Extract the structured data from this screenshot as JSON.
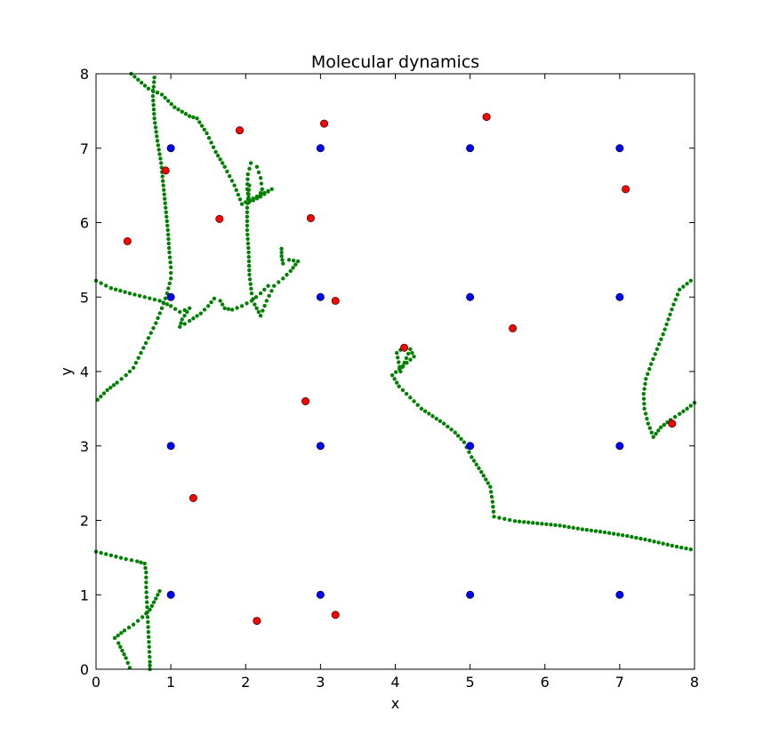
{
  "chart_data": {
    "type": "scatter",
    "title": "Molecular dynamics",
    "xlabel": "x",
    "ylabel": "y",
    "xlim": [
      0,
      8
    ],
    "ylim": [
      0,
      8
    ],
    "xticks": [
      "0",
      "1",
      "2",
      "3",
      "4",
      "5",
      "6",
      "7",
      "8"
    ],
    "yticks": [
      "0",
      "1",
      "2",
      "3",
      "4",
      "5",
      "6",
      "7",
      "8"
    ],
    "grid": false,
    "legend": "none",
    "series": [
      {
        "color": "#0000ff",
        "marker": "circle",
        "points": [
          [
            1,
            1
          ],
          [
            3,
            1
          ],
          [
            5,
            1
          ],
          [
            7,
            1
          ],
          [
            1,
            3
          ],
          [
            3,
            3
          ],
          [
            5,
            3
          ],
          [
            7,
            3
          ],
          [
            1,
            5
          ],
          [
            3,
            5
          ],
          [
            5,
            5
          ],
          [
            7,
            5
          ],
          [
            1,
            7
          ],
          [
            3,
            7
          ],
          [
            5,
            7
          ],
          [
            7,
            7
          ]
        ]
      },
      {
        "color": "#ff0000",
        "marker": "circle",
        "points": [
          [
            2.15,
            0.65
          ],
          [
            3.2,
            0.73
          ],
          [
            1.3,
            2.3
          ],
          [
            2.8,
            3.6
          ],
          [
            0.42,
            5.75
          ],
          [
            1.65,
            6.05
          ],
          [
            2.87,
            6.06
          ],
          [
            0.93,
            6.7
          ],
          [
            1.92,
            7.24
          ],
          [
            3.05,
            7.33
          ],
          [
            5.22,
            7.42
          ],
          [
            7.08,
            6.45
          ],
          [
            3.2,
            4.95
          ],
          [
            4.12,
            4.32
          ],
          [
            5.57,
            4.58
          ],
          [
            7.7,
            3.3
          ]
        ]
      },
      {
        "color": "#008000",
        "marker": "dot",
        "trajectories": [
          [
            [
              0.47,
              8.0
            ],
            [
              0.7,
              7.8
            ],
            [
              0.88,
              7.72
            ],
            [
              1.05,
              7.55
            ],
            [
              1.25,
              7.43
            ],
            [
              1.35,
              7.4
            ],
            [
              1.48,
              7.2
            ],
            [
              1.6,
              6.95
            ],
            [
              1.72,
              6.75
            ],
            [
              1.85,
              6.5
            ],
            [
              1.95,
              6.25
            ],
            [
              2.05,
              6.3
            ],
            [
              2.15,
              6.35
            ],
            [
              2.25,
              6.4
            ],
            [
              2.35,
              6.45
            ],
            [
              2.2,
              6.35
            ],
            [
              2.1,
              6.3
            ]
          ],
          [
            [
              2.05,
              6.28
            ],
            [
              2.02,
              6.45
            ],
            [
              2.03,
              6.65
            ],
            [
              2.07,
              6.8
            ],
            [
              2.15,
              6.75
            ],
            [
              2.2,
              6.6
            ],
            [
              2.22,
              6.45
            ],
            [
              2.18,
              6.35
            ],
            [
              2.1,
              6.3
            ]
          ],
          [
            [
              2.05,
              6.5
            ],
            [
              2.02,
              6.2
            ],
            [
              2.02,
              5.9
            ],
            [
              2.04,
              5.6
            ],
            [
              2.05,
              5.3
            ],
            [
              2.08,
              5.05
            ],
            [
              2.12,
              4.9
            ],
            [
              2.2,
              4.75
            ],
            [
              2.28,
              4.95
            ],
            [
              2.38,
              5.15
            ],
            [
              2.5,
              5.25
            ],
            [
              2.6,
              5.35
            ],
            [
              2.7,
              5.48
            ],
            [
              2.58,
              5.5
            ],
            [
              2.5,
              5.45
            ],
            [
              2.48,
              5.55
            ],
            [
              2.48,
              5.65
            ]
          ],
          [
            [
              0.78,
              7.95
            ],
            [
              0.76,
              7.7
            ],
            [
              0.78,
              7.4
            ],
            [
              0.82,
              7.1
            ],
            [
              0.87,
              6.8
            ],
            [
              0.9,
              6.5
            ],
            [
              0.93,
              6.2
            ],
            [
              0.96,
              5.9
            ],
            [
              0.98,
              5.6
            ],
            [
              1.0,
              5.4
            ],
            [
              1.0,
              5.25
            ],
            [
              0.95,
              5.05
            ],
            [
              0.88,
              4.85
            ],
            [
              0.8,
              4.65
            ],
            [
              0.7,
              4.45
            ],
            [
              0.6,
              4.25
            ],
            [
              0.5,
              4.05
            ],
            [
              0.4,
              3.95
            ],
            [
              0.28,
              3.85
            ],
            [
              0.15,
              3.75
            ],
            [
              0.02,
              3.62
            ]
          ],
          [
            [
              0.0,
              5.22
            ],
            [
              0.2,
              5.12
            ],
            [
              0.45,
              5.05
            ],
            [
              0.65,
              5.0
            ],
            [
              0.85,
              4.95
            ],
            [
              1.0,
              4.88
            ],
            [
              1.12,
              4.8
            ],
            [
              1.25,
              4.85
            ],
            [
              1.15,
              4.7
            ],
            [
              1.12,
              4.6
            ],
            [
              1.25,
              4.68
            ],
            [
              1.4,
              4.78
            ],
            [
              1.5,
              4.88
            ],
            [
              1.58,
              4.98
            ],
            [
              1.66,
              4.95
            ],
            [
              1.72,
              4.85
            ],
            [
              1.82,
              4.83
            ],
            [
              1.95,
              4.88
            ],
            [
              2.08,
              4.95
            ],
            [
              2.2,
              5.05
            ],
            [
              2.3,
              5.15
            ]
          ],
          [
            [
              4.12,
              4.33
            ],
            [
              4.02,
              4.25
            ],
            [
              4.07,
              4.0
            ],
            [
              4.2,
              4.3
            ],
            [
              4.25,
              4.2
            ],
            [
              3.96,
              3.95
            ],
            [
              4.05,
              3.8
            ],
            [
              4.2,
              3.65
            ],
            [
              4.35,
              3.5
            ],
            [
              4.5,
              3.4
            ],
            [
              4.65,
              3.3
            ],
            [
              4.8,
              3.18
            ],
            [
              4.92,
              3.05
            ],
            [
              5.02,
              2.85
            ],
            [
              5.15,
              2.65
            ],
            [
              5.27,
              2.45
            ],
            [
              5.3,
              2.25
            ],
            [
              5.32,
              2.05
            ],
            [
              5.6,
              1.99
            ],
            [
              5.9,
              1.96
            ],
            [
              6.2,
              1.93
            ],
            [
              6.5,
              1.88
            ],
            [
              6.8,
              1.84
            ],
            [
              7.1,
              1.79
            ],
            [
              7.4,
              1.73
            ],
            [
              7.7,
              1.66
            ],
            [
              7.95,
              1.61
            ]
          ],
          [
            [
              7.95,
              5.22
            ],
            [
              7.8,
              5.1
            ],
            [
              7.72,
              4.9
            ],
            [
              7.65,
              4.7
            ],
            [
              7.58,
              4.5
            ],
            [
              7.5,
              4.3
            ],
            [
              7.42,
              4.1
            ],
            [
              7.35,
              3.9
            ],
            [
              7.32,
              3.7
            ],
            [
              7.33,
              3.5
            ],
            [
              7.38,
              3.3
            ],
            [
              7.45,
              3.12
            ],
            [
              7.55,
              3.25
            ],
            [
              7.68,
              3.35
            ],
            [
              7.8,
              3.43
            ],
            [
              7.9,
              3.5
            ],
            [
              8.0,
              3.58
            ]
          ],
          [
            [
              0.0,
              1.58
            ],
            [
              0.2,
              1.53
            ],
            [
              0.4,
              1.48
            ],
            [
              0.55,
              1.45
            ],
            [
              0.65,
              1.42
            ],
            [
              0.67,
              1.3
            ],
            [
              0.67,
              1.1
            ],
            [
              0.68,
              0.9
            ],
            [
              0.69,
              0.7
            ],
            [
              0.7,
              0.5
            ],
            [
              0.71,
              0.3
            ],
            [
              0.72,
              0.1
            ],
            [
              0.72,
              0.0
            ]
          ],
          [
            [
              0.85,
              1.05
            ],
            [
              0.8,
              0.95
            ],
            [
              0.72,
              0.8
            ],
            [
              0.62,
              0.7
            ],
            [
              0.5,
              0.6
            ],
            [
              0.38,
              0.52
            ],
            [
              0.25,
              0.42
            ],
            [
              0.3,
              0.35
            ],
            [
              0.35,
              0.25
            ],
            [
              0.4,
              0.15
            ],
            [
              0.45,
              0.02
            ]
          ]
        ]
      }
    ]
  }
}
